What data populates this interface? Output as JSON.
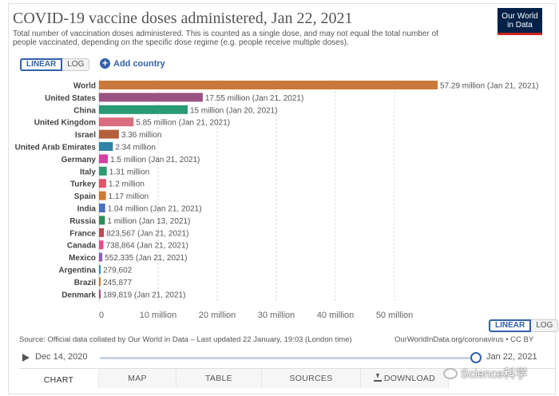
{
  "header": {
    "title": "COVID-19 vaccine doses administered, Jan 22, 2021",
    "subtitle": "Total number of vaccination doses administered. This is counted as a single dose, and may not equal the total number of people vaccinated, depending on the specific dose regime (e.g. people receive multiple doses).",
    "logo_line1": "Our World",
    "logo_line2": "in Data"
  },
  "controls": {
    "linear_label": "LINEAR",
    "log_label": "LOG",
    "add_country_label": "Add country"
  },
  "colors": {
    "accent": "#3360a9",
    "logo_bg": "#002147",
    "logo_bar": "#ce261e"
  },
  "chart_data": {
    "type": "bar",
    "orientation": "horizontal",
    "unit": "doses",
    "xlim": [
      0,
      57290000
    ],
    "x_ticks": [
      {
        "value": 0,
        "label": "0"
      },
      {
        "value": 10000000,
        "label": "10 million"
      },
      {
        "value": 20000000,
        "label": "20 million"
      },
      {
        "value": 30000000,
        "label": "30 million"
      },
      {
        "value": 40000000,
        "label": "40 million"
      },
      {
        "value": 50000000,
        "label": "50 million"
      }
    ],
    "grid": true,
    "bars": [
      {
        "category": "World",
        "value": 57290000,
        "label": "57.29 million (Jan 21, 2021)",
        "color": "#c8793b"
      },
      {
        "category": "United States",
        "value": 17550000,
        "label": "17.55 million (Jan 21, 2021)",
        "color": "#9a5281"
      },
      {
        "category": "China",
        "value": 15000000,
        "label": "15 million (Jan 20, 2021)",
        "color": "#2a9a74"
      },
      {
        "category": "United Kingdom",
        "value": 5850000,
        "label": "5.85 million (Jan 21, 2021)",
        "color": "#d96c7e"
      },
      {
        "category": "Israel",
        "value": 3360000,
        "label": "3.36 million",
        "color": "#b5603c"
      },
      {
        "category": "United Arab Emirates",
        "value": 2340000,
        "label": "2.34 million",
        "color": "#2f84a8"
      },
      {
        "category": "Germany",
        "value": 1500000,
        "label": "1.5 million (Jan 21, 2021)",
        "color": "#d640a5"
      },
      {
        "category": "Italy",
        "value": 1310000,
        "label": "1.31 million",
        "color": "#2e9b6f"
      },
      {
        "category": "Turkey",
        "value": 1200000,
        "label": "1.2 million",
        "color": "#e0566b"
      },
      {
        "category": "Spain",
        "value": 1170000,
        "label": "1.17 million",
        "color": "#cc7a32"
      },
      {
        "category": "India",
        "value": 1040000,
        "label": "1.04 million (Jan 21, 2021)",
        "color": "#4a6fc3"
      },
      {
        "category": "Russia",
        "value": 1000000,
        "label": "1 million (Jan 13, 2021)",
        "color": "#2e8c5a"
      },
      {
        "category": "France",
        "value": 823567,
        "label": "823,567 (Jan 21, 2021)",
        "color": "#bf4a52"
      },
      {
        "category": "Canada",
        "value": 738864,
        "label": "738,864 (Jan 21, 2021)",
        "color": "#e04f8a"
      },
      {
        "category": "Mexico",
        "value": 552335,
        "label": "552,335 (Jan 21, 2021)",
        "color": "#8e5fb8"
      },
      {
        "category": "Argentina",
        "value": 279602,
        "label": "279,602",
        "color": "#3a8fb5"
      },
      {
        "category": "Brazil",
        "value": 245877,
        "label": "245,877",
        "color": "#c8793b"
      },
      {
        "category": "Denmark",
        "value": 189819,
        "label": "189,819 (Jan 21, 2021)",
        "color": "#9a5281"
      }
    ]
  },
  "footer": {
    "source": "Source: Official data collated by Our World in Data – Last updated 22 January, 19:03 (London time)",
    "source_right": "OurWorldInData.org/coronavirus • CC BY",
    "linear_label": "LINEAR",
    "log_label": "LOG"
  },
  "timeline": {
    "start_label": "Dec 14, 2020",
    "end_label": "Jan 22, 2021",
    "position": 1.0
  },
  "tabs": [
    {
      "label": "CHART",
      "active": true
    },
    {
      "label": "MAP",
      "active": false
    },
    {
      "label": "TABLE",
      "active": false
    },
    {
      "label": "SOURCES",
      "active": false
    },
    {
      "label": "DOWNLOAD",
      "active": false
    }
  ],
  "watermark": {
    "text": "Science科学"
  }
}
